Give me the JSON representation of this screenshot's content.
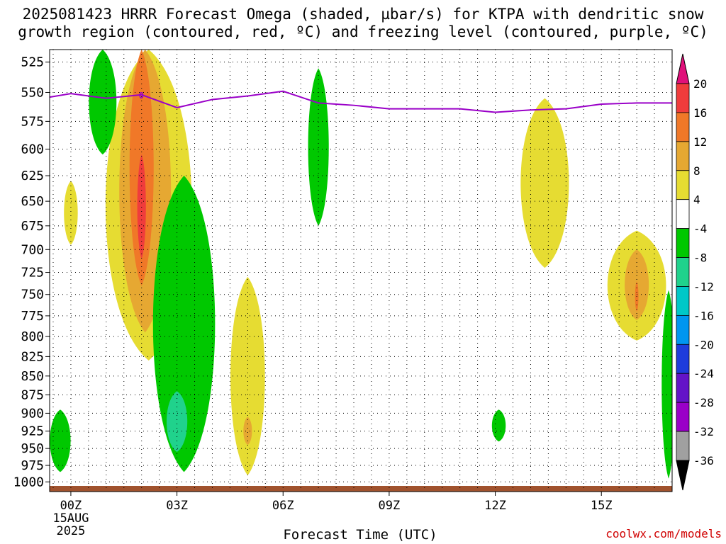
{
  "title": {
    "line1": "2025081423 HRRR Forecast Omega (shaded, µbar/s) for KTPA with dendritic snow",
    "line2": "growth region (contoured, red, ºC) and freezing level (contoured, purple, ºC)"
  },
  "credit": "coolwx.com/models",
  "colors": {
    "freezing_level": "#9a00c8",
    "ground": "#a0522d",
    "grid": "#000000"
  },
  "chart_data": {
    "type": "heatmap",
    "title": "2025081423 HRRR Forecast Omega (shaded, µbar/s) for KTPA with dendritic snow growth region (contoured, red, ºC) and freezing level (contoured, purple, ºC)",
    "xlabel": "Forecast Time (UTC)",
    "ylabel": "",
    "x_range_hours": [
      -0.6,
      17
    ],
    "y_range_mb": [
      515,
      1015
    ],
    "y_scale": "log-pressure",
    "grid": true,
    "x_ticks": [
      {
        "hour": 0,
        "label": "00Z",
        "sub": [
          "15AUG",
          "2025"
        ]
      },
      {
        "hour": 3,
        "label": "03Z"
      },
      {
        "hour": 6,
        "label": "06Z"
      },
      {
        "hour": 9,
        "label": "09Z"
      },
      {
        "hour": 12,
        "label": "12Z"
      },
      {
        "hour": 15,
        "label": "15Z"
      }
    ],
    "y_ticks": [
      525,
      550,
      575,
      600,
      625,
      650,
      675,
      700,
      725,
      750,
      775,
      800,
      825,
      850,
      875,
      900,
      925,
      950,
      975,
      1000
    ],
    "colorbar": {
      "levels": [
        20,
        16,
        12,
        8,
        4,
        -4,
        -8,
        -12,
        -16,
        -20,
        -24,
        -28,
        -32,
        -36
      ],
      "bins": [
        {
          "range": "20+",
          "color": "#e0107a"
        },
        {
          "range": "16 to 20",
          "color": "#f03c3c"
        },
        {
          "range": "12 to 16",
          "color": "#f07828"
        },
        {
          "range": "8 to 12",
          "color": "#e6a832"
        },
        {
          "range": "4 to 8",
          "color": "#e6dc32"
        },
        {
          "range": "-4 to 4",
          "color": "#ffffff"
        },
        {
          "range": "-8 to -4",
          "color": "#00c800"
        },
        {
          "range": "-12 to -8",
          "color": "#20d28c"
        },
        {
          "range": "-16 to -12",
          "color": "#00c8c8"
        },
        {
          "range": "-20 to -16",
          "color": "#0096f0"
        },
        {
          "range": "-24 to -20",
          "color": "#1e3cdc"
        },
        {
          "range": "-28 to -24",
          "color": "#6414c8"
        },
        {
          "range": "-32 to -28",
          "color": "#9a00c8"
        },
        {
          "range": "-36 to -32",
          "color": "#a0a0a0"
        },
        {
          "range": "< -36",
          "color": "#000000"
        }
      ]
    },
    "freezing_level_mb": [
      {
        "hour": -0.6,
        "p": 554
      },
      {
        "hour": 0,
        "p": 551
      },
      {
        "hour": 1,
        "p": 555
      },
      {
        "hour": 2,
        "p": 552
      },
      {
        "hour": 3,
        "p": 563
      },
      {
        "hour": 4,
        "p": 556
      },
      {
        "hour": 5,
        "p": 553
      },
      {
        "hour": 6,
        "p": 549
      },
      {
        "hour": 7,
        "p": 559
      },
      {
        "hour": 8,
        "p": 561
      },
      {
        "hour": 9,
        "p": 564
      },
      {
        "hour": 10,
        "p": 564
      },
      {
        "hour": 11,
        "p": 564
      },
      {
        "hour": 12,
        "p": 567
      },
      {
        "hour": 13,
        "p": 565
      },
      {
        "hour": 14,
        "p": 564
      },
      {
        "hour": 15,
        "p": 560
      },
      {
        "hour": 16,
        "p": 559
      },
      {
        "hour": 17,
        "p": 559
      }
    ],
    "omega_regions": [
      {
        "bin": "4 to 8",
        "hour": 2.2,
        "p_top": 515,
        "p_bottom": 830,
        "width_hours": 2.5
      },
      {
        "bin": "8 to 12",
        "hour": 2.1,
        "p_top": 515,
        "p_bottom": 795,
        "width_hours": 1.5
      },
      {
        "bin": "12 to 16",
        "hour": 2.0,
        "p_top": 515,
        "p_bottom": 740,
        "width_hours": 0.7
      },
      {
        "bin": "16 to 20",
        "hour": 2.0,
        "p_top": 605,
        "p_bottom": 710,
        "width_hours": 0.25
      },
      {
        "bin": "-8 to -4",
        "hour": 0.9,
        "p_top": 515,
        "p_bottom": 605,
        "width_hours": 0.8
      },
      {
        "bin": "-8 to -4",
        "hour": 3.2,
        "p_top": 625,
        "p_bottom": 985,
        "width_hours": 1.8
      },
      {
        "bin": "-12 to -8",
        "hour": 3.0,
        "p_top": 870,
        "p_bottom": 955,
        "width_hours": 0.6
      },
      {
        "bin": "-8 to -4",
        "hour": -0.3,
        "p_top": 895,
        "p_bottom": 985,
        "width_hours": 0.6
      },
      {
        "bin": "4 to 8",
        "hour": 0.0,
        "p_top": 630,
        "p_bottom": 695,
        "width_hours": 0.4
      },
      {
        "bin": "4 to 8",
        "hour": 5.0,
        "p_top": 730,
        "p_bottom": 990,
        "width_hours": 1.0
      },
      {
        "bin": "8 to 12",
        "hour": 5.0,
        "p_top": 905,
        "p_bottom": 945,
        "width_hours": 0.25
      },
      {
        "bin": "-8 to -4",
        "hour": 7.0,
        "p_top": 530,
        "p_bottom": 675,
        "width_hours": 0.6
      },
      {
        "bin": "4 to 8",
        "hour": 13.4,
        "p_top": 555,
        "p_bottom": 720,
        "width_hours": 1.4
      },
      {
        "bin": "-8 to -4",
        "hour": 12.1,
        "p_top": 895,
        "p_bottom": 940,
        "width_hours": 0.4
      },
      {
        "bin": "4 to 8",
        "hour": 16.0,
        "p_top": 680,
        "p_bottom": 805,
        "width_hours": 1.7
      },
      {
        "bin": "8 to 12",
        "hour": 16.0,
        "p_top": 700,
        "p_bottom": 780,
        "width_hours": 0.7
      },
      {
        "bin": "12 to 16",
        "hour": 16.0,
        "p_top": 735,
        "p_bottom": 770,
        "width_hours": 0.1
      },
      {
        "bin": "-8 to -4",
        "hour": 16.9,
        "p_top": 745,
        "p_bottom": 995,
        "width_hours": 0.4
      }
    ]
  }
}
